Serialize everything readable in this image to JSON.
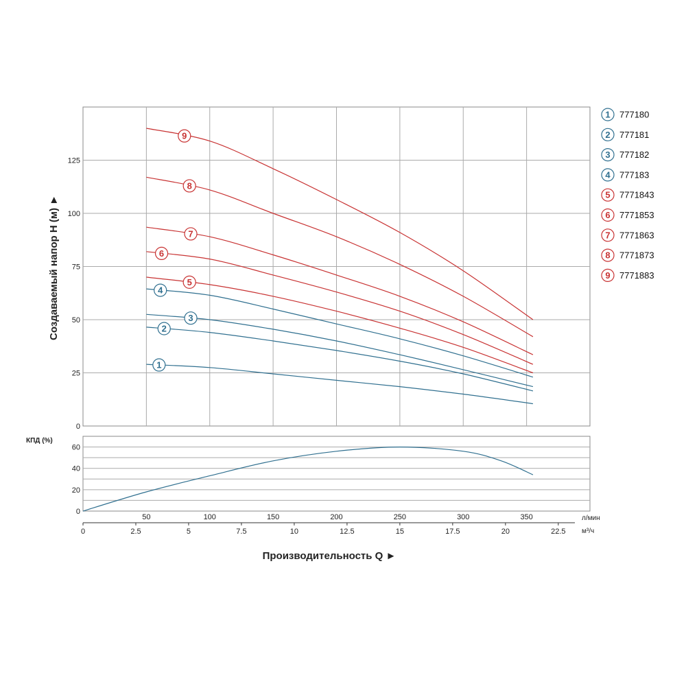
{
  "chart_data": [
    {
      "type": "line",
      "name": "head",
      "ylabel": "Создаваемый напор Н (м)",
      "ylabel_arrow": "►",
      "x_unit": "л/мин",
      "xlim": [
        0,
        400
      ],
      "ylim": [
        0,
        150
      ],
      "y_ticks": [
        0,
        25,
        50,
        75,
        100,
        125
      ],
      "x_ticks": [
        50,
        100,
        150,
        200,
        250,
        300,
        350
      ],
      "x2_unit": "м³/ч",
      "x2_ticks": [
        "0",
        "2.5",
        "5",
        "7.5",
        "10",
        "12.5",
        "15",
        "17.5",
        "20",
        "22.5"
      ],
      "grid": true,
      "legend_position": "right",
      "series": [
        {
          "name": "777180",
          "label": "1",
          "color": "#2f6f8f",
          "marker_x": 60,
          "x": [
            50,
            100,
            150,
            200,
            250,
            300,
            355
          ],
          "y": [
            29,
            27.5,
            24.5,
            21.5,
            18.5,
            15,
            10.5
          ]
        },
        {
          "name": "777181",
          "label": "2",
          "color": "#2f6f8f",
          "marker_x": 64,
          "x": [
            50,
            100,
            150,
            200,
            250,
            300,
            355
          ],
          "y": [
            46.5,
            44,
            40,
            35.5,
            30.5,
            24.5,
            16.5
          ]
        },
        {
          "name": "777182",
          "label": "3",
          "color": "#2f6f8f",
          "marker_x": 85,
          "x": [
            50,
            100,
            150,
            200,
            250,
            300,
            355
          ],
          "y": [
            52.5,
            50,
            45.5,
            40,
            33.5,
            26.5,
            18.5
          ]
        },
        {
          "name": "777183",
          "label": "4",
          "color": "#2f6f8f",
          "marker_x": 61,
          "x": [
            50,
            100,
            150,
            200,
            250,
            300,
            355
          ],
          "y": [
            64.5,
            61.5,
            55,
            48,
            41,
            33,
            23
          ]
        },
        {
          "name": "7771843",
          "label": "5",
          "color": "#c83232",
          "marker_x": 84,
          "x": [
            50,
            100,
            150,
            200,
            250,
            300,
            355
          ],
          "y": [
            70,
            66.5,
            61,
            54,
            46,
            37,
            25
          ]
        },
        {
          "name": "7771853",
          "label": "6",
          "color": "#c83232",
          "marker_x": 62,
          "x": [
            50,
            100,
            150,
            200,
            250,
            300,
            355
          ],
          "y": [
            82,
            78.5,
            71,
            63,
            54,
            43,
            29
          ]
        },
        {
          "name": "7771863",
          "label": "7",
          "color": "#c83232",
          "marker_x": 85,
          "x": [
            50,
            100,
            150,
            200,
            250,
            300,
            355
          ],
          "y": [
            93.5,
            89,
            80.5,
            71,
            61,
            49,
            33.5
          ]
        },
        {
          "name": "7771873",
          "label": "8",
          "color": "#c83232",
          "marker_x": 84,
          "x": [
            50,
            100,
            150,
            200,
            250,
            300,
            355
          ],
          "y": [
            117,
            111,
            100,
            89,
            76,
            61,
            42
          ]
        },
        {
          "name": "7771883",
          "label": "9",
          "color": "#c83232",
          "marker_x": 80,
          "x": [
            50,
            100,
            150,
            200,
            250,
            300,
            355
          ],
          "y": [
            140,
            134,
            121,
            106.5,
            91,
            73,
            50
          ]
        }
      ]
    },
    {
      "type": "line",
      "name": "efficiency",
      "ylabel": "КПД (%)",
      "ylim": [
        0,
        70
      ],
      "y_ticks": [
        0,
        20,
        40,
        60
      ],
      "xlim": [
        0,
        400
      ],
      "grid": true,
      "series": [
        {
          "color": "#2f6f8f",
          "x": [
            0,
            50,
            100,
            150,
            200,
            250,
            300,
            330,
            355
          ],
          "y": [
            0,
            18,
            33,
            47,
            56,
            60,
            56,
            47,
            34
          ]
        }
      ]
    }
  ],
  "x_axis_title": "Производительность Q",
  "x_axis_arrow": "►",
  "colors": {
    "blue": "#2f6f8f",
    "red": "#c83232",
    "grid": "#aaaaaa",
    "frame": "#888888"
  }
}
